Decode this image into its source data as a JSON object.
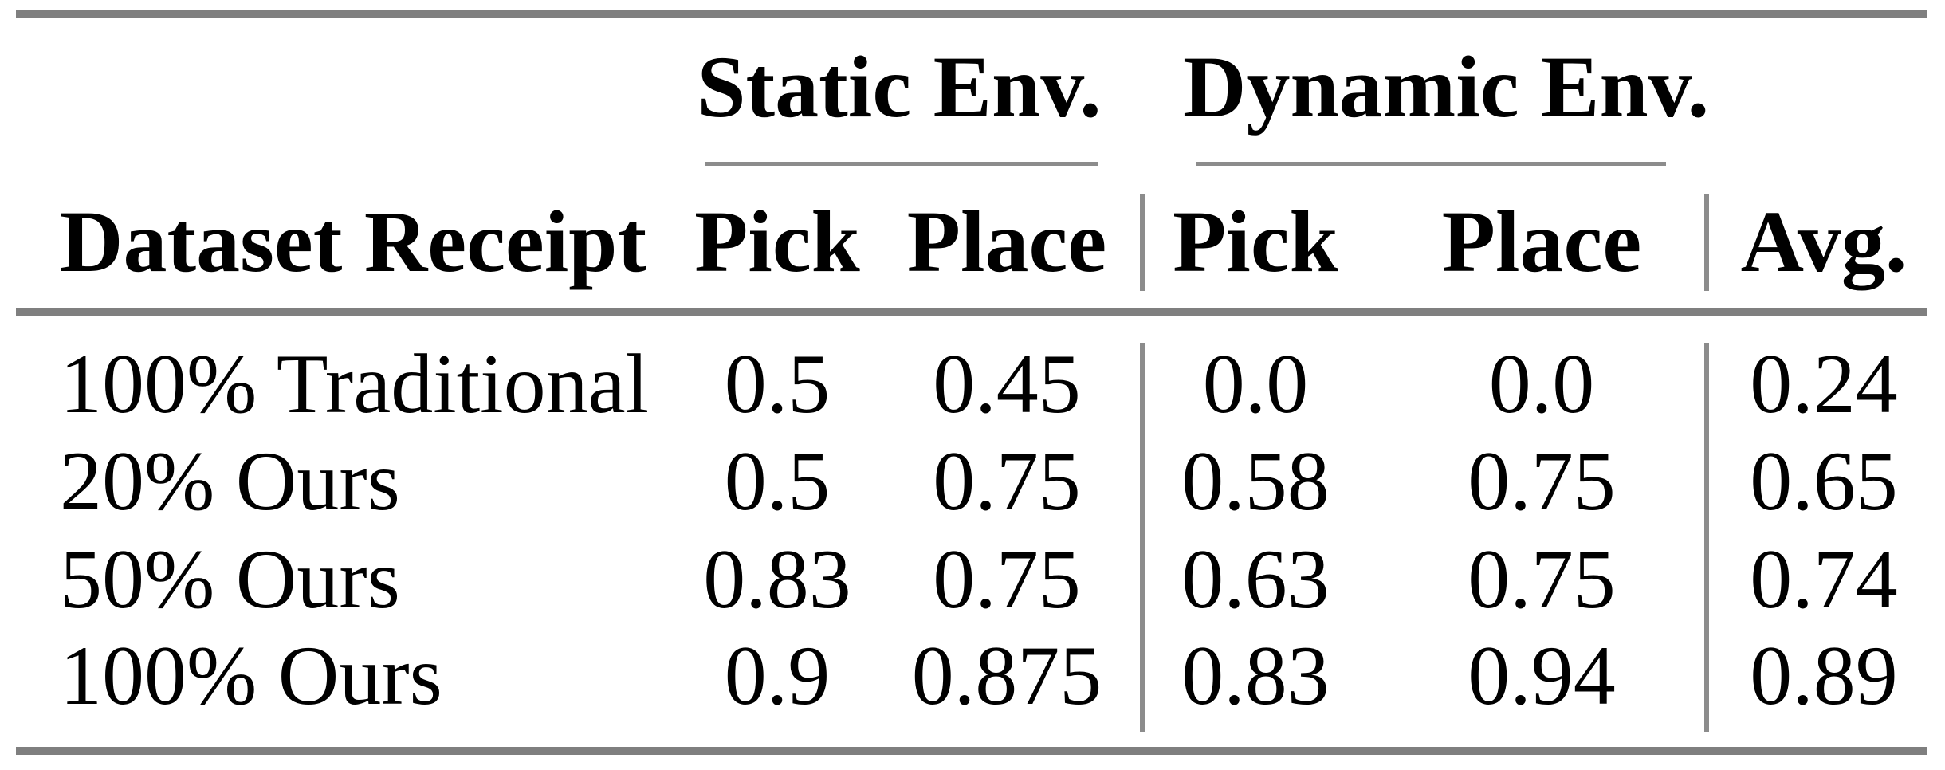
{
  "table": {
    "group_headers": [
      {
        "label": "Static Env."
      },
      {
        "label": "Dynamic Env."
      }
    ],
    "column_headers": {
      "dataset_receipt": "Dataset Receipt",
      "static_pick": "Pick",
      "static_place": "Place",
      "dynamic_pick": "Pick",
      "dynamic_place": "Place",
      "avg": "Avg."
    },
    "rows": [
      {
        "label": "100% Traditional",
        "static_pick": "0.5",
        "static_place": "0.45",
        "dynamic_pick": "0.0",
        "dynamic_place": "0.0",
        "avg": "0.24"
      },
      {
        "label": "20% Ours",
        "static_pick": "0.5",
        "static_place": "0.75",
        "dynamic_pick": "0.58",
        "dynamic_place": "0.75",
        "avg": "0.65"
      },
      {
        "label": "50% Ours",
        "static_pick": "0.83",
        "static_place": "0.75",
        "dynamic_pick": "0.63",
        "dynamic_place": "0.75",
        "avg": "0.74"
      },
      {
        "label": "100% Ours",
        "static_pick": "0.9",
        "static_place": "0.875",
        "dynamic_pick": "0.83",
        "dynamic_place": "0.94",
        "avg": "0.89"
      }
    ],
    "colors": {
      "rule": "#7f7f7f",
      "light_rule": "#8c8c8c",
      "text": "#000000",
      "background": "#ffffff"
    }
  }
}
